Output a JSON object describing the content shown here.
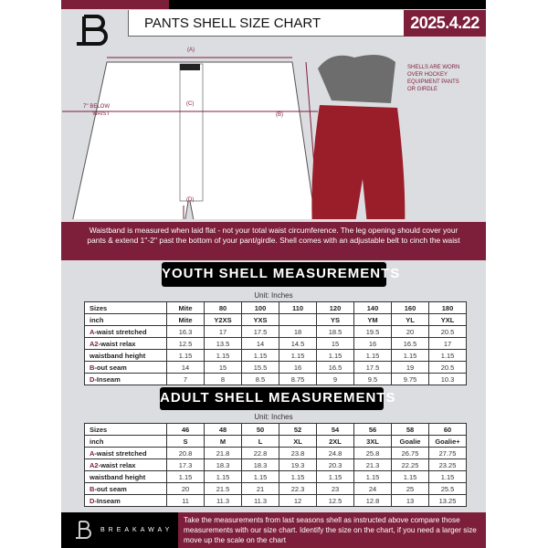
{
  "header": {
    "title": "PANTS SHELL SIZE CHART",
    "date": "2025.4.22",
    "logo": "B"
  },
  "diagram": {
    "label_a": "(A)",
    "label_b": "(B)",
    "label_c": "(C)",
    "label_d": "(D)",
    "below_waist_note": "7'' BELOW WAIST",
    "worn_note": "SHELLS ARE WORN OVER HOCKEY EQUIPMENT PANTS OR GIRDLE"
  },
  "banner": "Waistband is measured when laid flat - not your total waist circumference. The leg opening should cover your pants & extend 1''-2'' past the bottom of your pant/girdle. Shell comes with an adjustable belt to cinch the waist",
  "youth": {
    "title": "YOUTH SHELL MEASUREMENTS",
    "unit": "Unit: Inches",
    "rows": [
      {
        "key": "",
        "label": "Sizes",
        "values": [
          "Mite",
          "80",
          "100",
          "110",
          "120",
          "140",
          "160",
          "180"
        ]
      },
      {
        "key": "",
        "label": "inch",
        "values": [
          "Mite",
          "Y2XS",
          "YXS",
          "",
          "YS",
          "YM",
          "YL",
          "YXL"
        ]
      },
      {
        "key": "A",
        "label": "-waist stretched",
        "values": [
          "16.3",
          "17",
          "17.5",
          "18",
          "18.5",
          "19.5",
          "20",
          "20.5"
        ]
      },
      {
        "key": "A2",
        "label": "-waist relax",
        "values": [
          "12.5",
          "13.5",
          "14",
          "14.5",
          "15",
          "16",
          "16.5",
          "17"
        ]
      },
      {
        "key": "",
        "label": "waistband height",
        "values": [
          "1.15",
          "1.15",
          "1.15",
          "1.15",
          "1.15",
          "1.15",
          "1.15",
          "1.15"
        ]
      },
      {
        "key": "B",
        "label": "-out seam",
        "values": [
          "14",
          "15",
          "15.5",
          "16",
          "16.5",
          "17.5",
          "19",
          "20.5"
        ]
      },
      {
        "key": "D",
        "label": "-Inseam",
        "values": [
          "7",
          "8",
          "8.5",
          "8.75",
          "9",
          "9.5",
          "9.75",
          "10.3"
        ]
      }
    ]
  },
  "adult": {
    "title": "ADULT SHELL MEASUREMENTS",
    "unit": "Unit: Inches",
    "rows": [
      {
        "key": "",
        "label": "Sizes",
        "values": [
          "46",
          "48",
          "50",
          "52",
          "54",
          "56",
          "58",
          "60"
        ]
      },
      {
        "key": "",
        "label": "inch",
        "values": [
          "S",
          "M",
          "L",
          "XL",
          "2XL",
          "3XL",
          "Goalie",
          "Goalie+"
        ]
      },
      {
        "key": "A",
        "label": "-waist stretched",
        "values": [
          "20.8",
          "21.8",
          "22.8",
          "23.8",
          "24.8",
          "25.8",
          "26.75",
          "27.75"
        ]
      },
      {
        "key": "A2",
        "label": "-waist relax",
        "values": [
          "17.3",
          "18.3",
          "18.3",
          "19.3",
          "20.3",
          "21.3",
          "22.25",
          "23.25"
        ]
      },
      {
        "key": "",
        "label": "waistband height",
        "values": [
          "1.15",
          "1.15",
          "1.15",
          "1.15",
          "1.15",
          "1.15",
          "1.15",
          "1.15"
        ]
      },
      {
        "key": "B",
        "label": "-out seam",
        "values": [
          "20",
          "21.5",
          "21",
          "22.3",
          "23",
          "24",
          "25",
          "25.5"
        ]
      },
      {
        "key": "D",
        "label": "-Inseam",
        "values": [
          "11",
          "11.3",
          "11.3",
          "12",
          "12.5",
          "12.8",
          "13",
          "13.25"
        ]
      }
    ]
  },
  "footer": {
    "brand": "BREAKAWAY",
    "text": "Take the measurements from last seasons shell as instructed above compare those measurements  with our size chart. Identify the size on the chart, if you need a larger size move up the scale on the chart"
  },
  "colors": {
    "brand": "#7d1f3a",
    "background": "#dcdde0"
  }
}
